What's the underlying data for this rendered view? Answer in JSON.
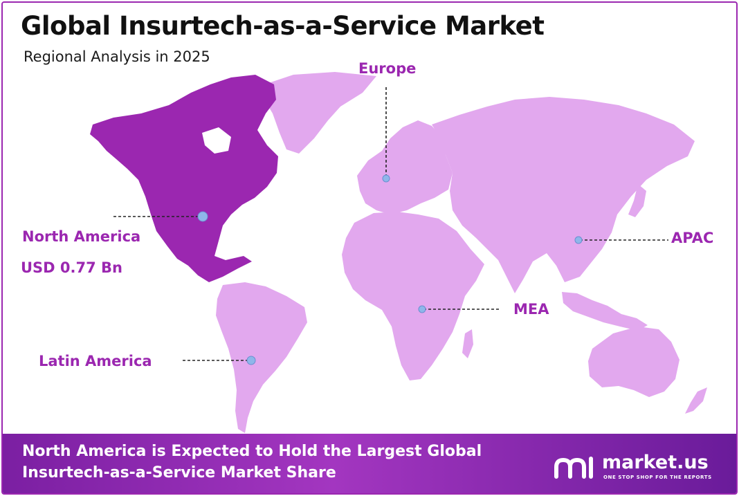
{
  "header": {
    "title": "Global Insurtech-as-a-Service Market",
    "subtitle": "Regional Analysis in 2025"
  },
  "regions": {
    "north_america": {
      "name": "North America",
      "value": "USD 0.77 Bn",
      "color": "#9b27b0"
    },
    "europe": {
      "name": "Europe",
      "color": "#e2a8ee"
    },
    "apac": {
      "name": "APAC",
      "color": "#e2a8ee"
    },
    "mea": {
      "name": "MEA",
      "color": "#e2a8ee"
    },
    "latin_america": {
      "name": "Latin America",
      "color": "#e2a8ee"
    }
  },
  "colors": {
    "accent": "#9b27b0",
    "land": "#e2a8ee",
    "marker": "#8fb6ea"
  },
  "footer": {
    "headline": "North America is Expected to Hold the Largest Global Insurtech-as-a-Service  Market Share"
  },
  "brand": {
    "name": "market.us",
    "tagline": "ONE STOP SHOP FOR THE REPORTS",
    "icon": "market-us-logo-icon"
  }
}
